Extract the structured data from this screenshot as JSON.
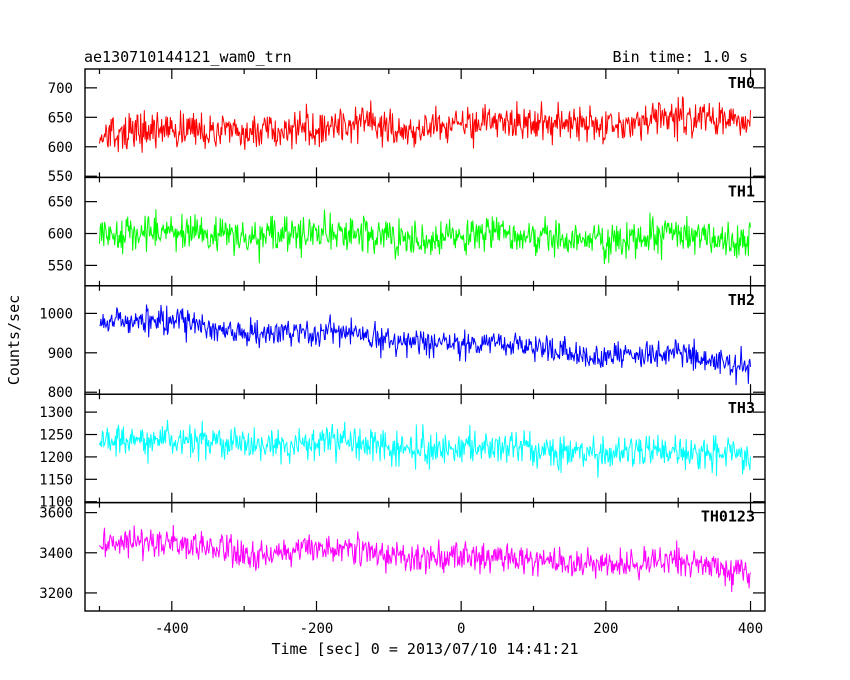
{
  "chart_data": {
    "type": "line",
    "title": "ae130710144121_wam0_trn",
    "subtitle": "Bin time: 1.0 s",
    "xlabel": "Time [sec] 0 = 2013/07/10 14:41:21",
    "ylabel": "Counts/sec",
    "xlim": [
      -520,
      420
    ],
    "xticks": [
      -400,
      -200,
      0,
      200,
      400
    ],
    "panels": [
      {
        "name": "TH0",
        "color": "#ff0000",
        "ylim": [
          548,
          732
        ],
        "yticks": [
          550,
          600,
          650,
          700
        ],
        "start_mean": 622,
        "end_mean": 648,
        "noise": 26,
        "wave": 6
      },
      {
        "name": "TH1",
        "color": "#00ff00",
        "ylim": [
          518,
          688
        ],
        "yticks": [
          550,
          600,
          650
        ],
        "start_mean": 600,
        "end_mean": 592,
        "noise": 24,
        "wave": 5
      },
      {
        "name": "TH2",
        "color": "#0000ff",
        "ylim": [
          795,
          1070
        ],
        "yticks": [
          800,
          900,
          1000
        ],
        "start_mean": 985,
        "end_mean": 875,
        "noise": 28,
        "wave": 8
      },
      {
        "name": "TH3",
        "color": "#00ffff",
        "ylim": [
          1098,
          1340
        ],
        "yticks": [
          1100,
          1150,
          1200,
          1250,
          1300
        ],
        "start_mean": 1240,
        "end_mean": 1205,
        "noise": 32,
        "wave": 6
      },
      {
        "name": "TH0123",
        "color": "#ff00ff",
        "ylim": [
          3110,
          3650
        ],
        "yticks": [
          3200,
          3400,
          3600
        ],
        "start_mean": 3450,
        "end_mean": 3320,
        "noise": 60,
        "wave": 20
      }
    ],
    "time_range": [
      -500,
      400
    ],
    "bin": 1.0
  }
}
